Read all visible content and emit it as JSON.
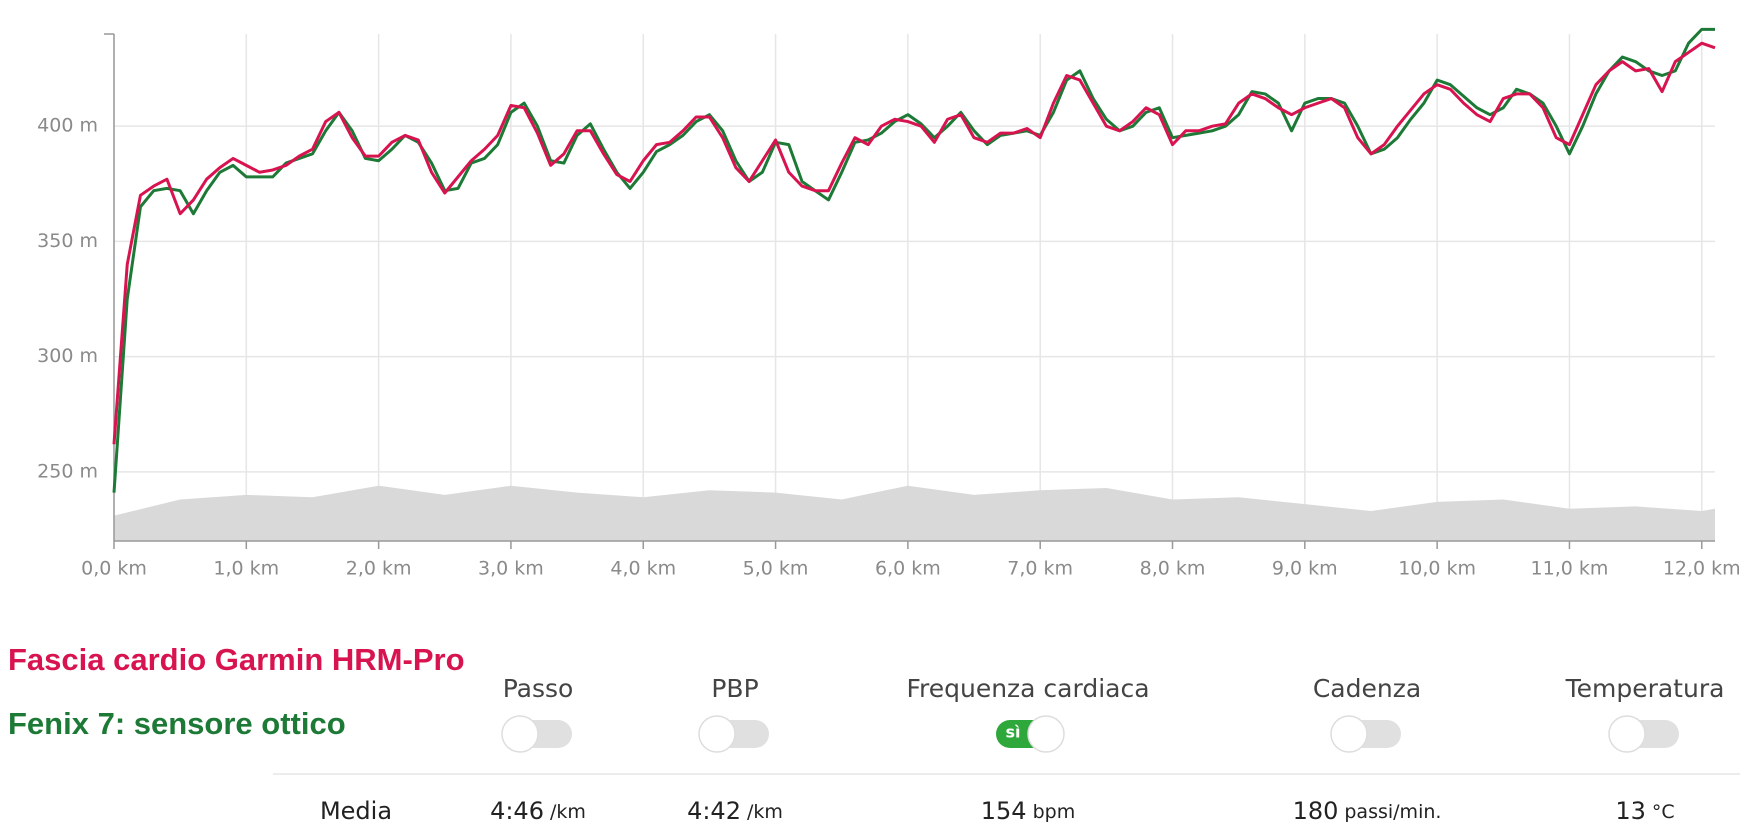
{
  "chart_data": {
    "type": "line",
    "x": [
      0,
      0.1,
      0.2,
      0.3,
      0.4,
      0.5,
      0.6,
      0.7,
      0.8,
      0.9,
      1.0,
      1.1,
      1.2,
      1.3,
      1.4,
      1.5,
      1.6,
      1.7,
      1.8,
      1.9,
      2.0,
      2.1,
      2.2,
      2.3,
      2.4,
      2.5,
      2.6,
      2.7,
      2.8,
      2.9,
      3.0,
      3.1,
      3.2,
      3.3,
      3.4,
      3.5,
      3.6,
      3.7,
      3.8,
      3.9,
      4.0,
      4.1,
      4.2,
      4.3,
      4.4,
      4.5,
      4.6,
      4.7,
      4.8,
      4.9,
      5.0,
      5.1,
      5.2,
      5.3,
      5.4,
      5.5,
      5.6,
      5.7,
      5.8,
      5.9,
      6.0,
      6.1,
      6.2,
      6.3,
      6.4,
      6.5,
      6.6,
      6.7,
      6.8,
      6.9,
      7.0,
      7.1,
      7.2,
      7.3,
      7.4,
      7.5,
      7.6,
      7.7,
      7.8,
      7.9,
      8.0,
      8.1,
      8.2,
      8.3,
      8.4,
      8.5,
      8.6,
      8.7,
      8.8,
      8.9,
      9.0,
      9.1,
      9.2,
      9.3,
      9.4,
      9.5,
      9.6,
      9.7,
      9.8,
      9.9,
      10.0,
      10.1,
      10.2,
      10.3,
      10.4,
      10.5,
      10.6,
      10.7,
      10.8,
      10.9,
      11.0,
      11.1,
      11.2,
      11.3,
      11.4,
      11.5,
      11.6,
      11.7,
      11.8,
      11.9,
      12.0,
      12.1
    ],
    "series": [
      {
        "name": "Fascia cardio Garmin HRM-Pro",
        "color": "#d81450",
        "values": [
          262,
          340,
          370,
          374,
          377,
          362,
          368,
          377,
          382,
          386,
          383,
          380,
          381,
          383,
          387,
          390,
          402,
          406,
          395,
          387,
          387,
          393,
          396,
          394,
          380,
          371,
          378,
          385,
          390,
          396,
          409,
          408,
          397,
          383,
          388,
          398,
          398,
          388,
          379,
          376,
          385,
          392,
          393,
          398,
          404,
          404,
          395,
          382,
          376,
          385,
          394,
          380,
          374,
          372,
          372,
          384,
          395,
          392,
          400,
          403,
          402,
          400,
          393,
          403,
          405,
          395,
          393,
          397,
          397,
          399,
          395,
          410,
          422,
          420,
          410,
          400,
          398,
          402,
          408,
          405,
          392,
          398,
          398,
          400,
          401,
          410,
          414,
          412,
          408,
          405,
          408,
          410,
          412,
          408,
          395,
          388,
          392,
          400,
          407,
          414,
          418,
          416,
          410,
          405,
          402,
          412,
          414,
          414,
          408,
          395,
          392,
          405,
          418,
          424,
          428,
          424,
          425,
          415,
          428,
          432,
          436,
          434
        ]
      },
      {
        "name": "Fenix 7: sensore ottico",
        "color": "#1d7a36",
        "values": [
          241,
          325,
          365,
          372,
          373,
          372,
          362,
          372,
          380,
          383,
          378,
          378,
          378,
          384,
          386,
          388,
          398,
          406,
          398,
          386,
          385,
          390,
          396,
          393,
          384,
          372,
          373,
          384,
          386,
          392,
          406,
          410,
          400,
          385,
          384,
          396,
          401,
          390,
          380,
          373,
          380,
          389,
          392,
          396,
          402,
          405,
          398,
          385,
          376,
          380,
          393,
          392,
          376,
          372,
          368,
          380,
          393,
          394,
          397,
          402,
          405,
          401,
          395,
          400,
          406,
          398,
          392,
          396,
          397,
          398,
          396,
          406,
          420,
          424,
          412,
          403,
          398,
          400,
          406,
          408,
          395,
          396,
          397,
          398,
          400,
          405,
          415,
          414,
          410,
          398,
          410,
          412,
          412,
          410,
          400,
          388,
          390,
          395,
          403,
          410,
          420,
          418,
          413,
          408,
          405,
          408,
          416,
          414,
          410,
          400,
          388,
          400,
          414,
          424,
          430,
          428,
          424,
          422,
          424,
          436,
          442,
          442
        ]
      }
    ],
    "area": {
      "color": "#d9d9d9",
      "x": [
        0,
        0.5,
        1.0,
        1.5,
        2.0,
        2.5,
        3.0,
        3.5,
        4.0,
        4.5,
        5.0,
        5.5,
        6.0,
        6.5,
        7.0,
        7.5,
        8.0,
        8.5,
        9.0,
        9.5,
        10.0,
        10.5,
        11.0,
        11.5,
        12.0,
        12.1
      ],
      "values": [
        231,
        238,
        240,
        239,
        244,
        240,
        244,
        241,
        239,
        242,
        241,
        238,
        244,
        240,
        242,
        243,
        238,
        239,
        236,
        233,
        237,
        238,
        234,
        235,
        233,
        234
      ]
    },
    "xlim": [
      0,
      12.1
    ],
    "ylim": [
      220,
      440
    ],
    "xticks": [
      {
        "value": 0,
        "label": "0,0 km"
      },
      {
        "value": 1,
        "label": "1,0 km"
      },
      {
        "value": 2,
        "label": "2,0 km"
      },
      {
        "value": 3,
        "label": "3,0 km"
      },
      {
        "value": 4,
        "label": "4,0 km"
      },
      {
        "value": 5,
        "label": "5,0 km"
      },
      {
        "value": 6,
        "label": "6,0 km"
      },
      {
        "value": 7,
        "label": "7,0 km"
      },
      {
        "value": 8,
        "label": "8,0 km"
      },
      {
        "value": 9,
        "label": "9,0 km"
      },
      {
        "value": 10,
        "label": "10,0 km"
      },
      {
        "value": 11,
        "label": "11,0 km"
      },
      {
        "value": 12,
        "label": "12,0 km"
      }
    ],
    "yticks": [
      {
        "value": 250,
        "label": "250 m"
      },
      {
        "value": 300,
        "label": "300 m"
      },
      {
        "value": 350,
        "label": "350 m"
      },
      {
        "value": 400,
        "label": "400 m"
      }
    ],
    "grid": true
  },
  "toggles": [
    {
      "label": "Passo"
    },
    {
      "label": "PBP"
    },
    {
      "label": "Frequenza cardiaca",
      "on_text": "sì"
    },
    {
      "label": "Cadenza"
    },
    {
      "label": "Temperatura"
    }
  ],
  "stats": {
    "label": "Media",
    "values": [
      {
        "value": "4:46",
        "unit": "/km"
      },
      {
        "value": "4:42",
        "unit": "/km"
      },
      {
        "value": "154",
        "unit": "bpm"
      },
      {
        "value": "180",
        "unit": "passi/min."
      },
      {
        "value": "13",
        "unit": "°C"
      }
    ]
  }
}
